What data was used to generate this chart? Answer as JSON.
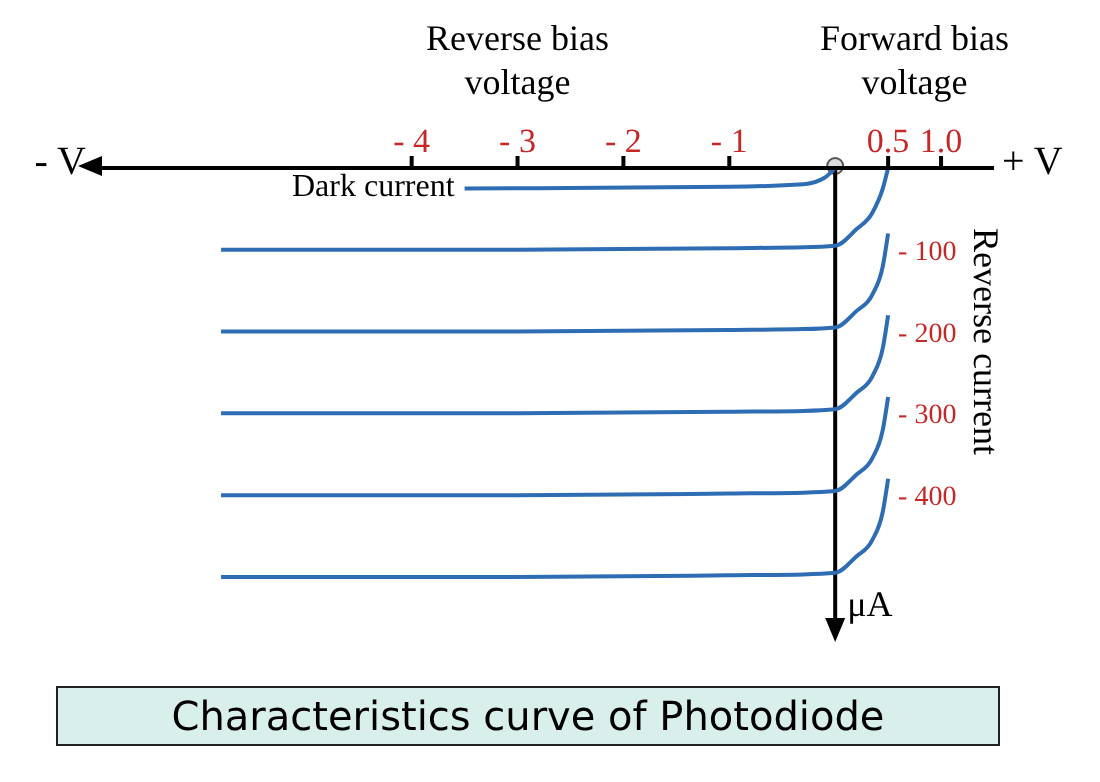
{
  "chart_data": {
    "type": "line",
    "title": "Characteristics curve of Photodiode",
    "ylabel": "Reverse current",
    "annotations": [
      "Reverse bias voltage",
      "Forward bias voltage",
      "- V",
      "+ V",
      "μA"
    ],
    "xlim": [
      -7,
      1.5
    ],
    "xticks": [
      {
        "value": -4,
        "label": "- 4"
      },
      {
        "value": -3,
        "label": "- 3"
      },
      {
        "value": -2,
        "label": "- 2"
      },
      {
        "value": -1,
        "label": "- 1"
      },
      0.5,
      {
        "value": 1,
        "label": "1.0"
      }
    ],
    "ylim": [
      -560,
      0
    ],
    "yticks": [
      {
        "value": -100,
        "label": "- 100"
      },
      {
        "value": -200,
        "label": "- 200"
      },
      {
        "value": -300,
        "label": "- 300"
      },
      {
        "value": -400,
        "label": "- 400"
      }
    ],
    "grid": false,
    "legend": false,
    "marker": "none",
    "line_style": "solid",
    "series": [
      {
        "name": "Dark current",
        "color": "#2e6db4",
        "x": [
          -3.5,
          -1,
          -0.3,
          -0.1,
          0
        ],
        "values": [
          -25,
          -23,
          -20,
          -12,
          0
        ]
      },
      {
        "color": "#2e6db4",
        "x": [
          -5.8,
          -3,
          -1,
          -0.3,
          0,
          0.2,
          0.35,
          0.45,
          0.5
        ],
        "values": [
          -100,
          -100,
          -98,
          -97,
          -95,
          -75,
          -55,
          -25,
          0
        ]
      },
      {
        "color": "#2e6db4",
        "x": [
          -5.8,
          -3,
          -1,
          -0.3,
          0,
          0.2,
          0.35,
          0.45,
          0.5
        ],
        "values": [
          -200,
          -200,
          -198,
          -197,
          -195,
          -175,
          -155,
          -120,
          -80
        ]
      },
      {
        "color": "#2e6db4",
        "x": [
          -5.8,
          -3,
          -1,
          -0.3,
          0,
          0.2,
          0.35,
          0.45,
          0.5
        ],
        "values": [
          -300,
          -300,
          -298,
          -297,
          -295,
          -275,
          -255,
          -220,
          -180
        ]
      },
      {
        "color": "#2e6db4",
        "x": [
          -5.8,
          -3,
          -1,
          -0.3,
          0,
          0.2,
          0.35,
          0.45,
          0.5
        ],
        "values": [
          -400,
          -400,
          -398,
          -397,
          -395,
          -375,
          -355,
          -320,
          -280
        ]
      },
      {
        "color": "#2e6db4",
        "x": [
          -5.8,
          -3,
          -1,
          -0.3,
          0,
          0.2,
          0.35,
          0.45,
          0.5
        ],
        "values": [
          -500,
          -500,
          -498,
          -497,
          -495,
          -475,
          -455,
          -420,
          -380
        ]
      }
    ]
  }
}
